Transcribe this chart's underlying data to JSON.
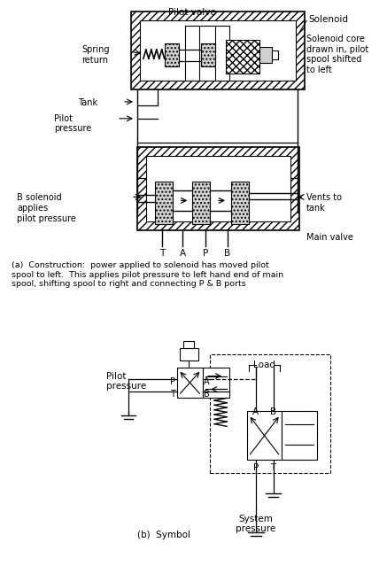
{
  "bg_color": "#ffffff",
  "title_a": "(a)  Construction:  power applied to solenoid has moved pilot\nspool to left.  This applies pilot pressure to left hand end of main\nspool, shifting spool to right and connecting P & B ports",
  "title_b": "(b)  Symbol",
  "label_pilot_valve": "Pilot valve",
  "label_solenoid": "Solenoid",
  "label_spring_return": "Spring\nreturn",
  "label_tank": "Tank",
  "label_pilot_pressure": "Pilot\npressure",
  "label_solenoid_core": "Solenoid core\ndrawn in, pilot\nspool shifted\nto left",
  "label_b_solenoid": "B solenoid\napplies\npilot pressure",
  "label_vents": "Vents to\ntank",
  "label_main_valve": "Main valve",
  "label_pilot_pressure_b": "Pilot\npressure",
  "label_load": "Load",
  "label_system_pressure": "System\npressure"
}
